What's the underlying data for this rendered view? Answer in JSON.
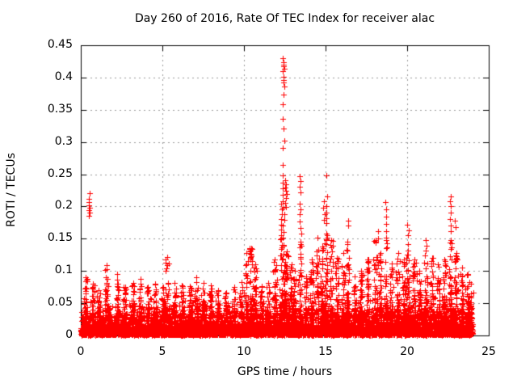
{
  "chart_data": {
    "type": "scatter",
    "title": "Day 260 of 2016, Rate Of TEC Index for receiver alac",
    "xlabel": "GPS time / hours",
    "ylabel": "ROTI / TECUs",
    "xlim": [
      0,
      25
    ],
    "ylim": [
      0,
      0.45
    ],
    "x_ticks": [
      0,
      5,
      10,
      15,
      20,
      25
    ],
    "x_tick_labels": [
      "0",
      "5",
      "10",
      "15",
      "20",
      "25"
    ],
    "y_ticks": [
      0,
      0.05,
      0.1,
      0.15,
      0.2,
      0.25,
      0.3,
      0.35,
      0.4,
      0.45
    ],
    "y_tick_labels": [
      "0",
      "0.05",
      "0.1",
      "0.15",
      "0.2",
      "0.25",
      "0.3",
      "0.35",
      "0.4",
      "0.45"
    ],
    "grid": "dashed gray lines at major ticks, both axes",
    "legend": "none",
    "marker": "plus-cross",
    "marker_color": "#ff0000",
    "grid_color": "#9a9a9a",
    "border_color": "#000000",
    "background_color": "#ffffff",
    "data_time_range": [
      0,
      24
    ],
    "baseline_band": {
      "description": "dense noise band hugging zero, most points below 0.05 TECUs across 0-24 h",
      "count": 6500,
      "exp_scale": 0.011,
      "max": 0.06
    },
    "spike_events": [
      [
        0.3,
        0.09
      ],
      [
        0.75,
        0.08
      ],
      [
        1.1,
        0.07
      ],
      [
        1.6,
        0.109
      ],
      [
        2.25,
        0.095
      ],
      [
        2.7,
        0.075
      ],
      [
        3.2,
        0.082
      ],
      [
        3.65,
        0.088
      ],
      [
        4.1,
        0.075
      ],
      [
        4.55,
        0.08
      ],
      [
        5.05,
        0.075
      ],
      [
        5.3,
        0.122
      ],
      [
        5.75,
        0.082
      ],
      [
        6.2,
        0.078
      ],
      [
        6.7,
        0.076
      ],
      [
        7.1,
        0.09
      ],
      [
        7.5,
        0.082
      ],
      [
        7.95,
        0.078
      ],
      [
        8.4,
        0.07
      ],
      [
        8.9,
        0.066
      ],
      [
        9.4,
        0.075
      ],
      [
        9.85,
        0.083
      ],
      [
        10.15,
        0.128
      ],
      [
        10.45,
        0.136
      ],
      [
        10.7,
        0.11
      ],
      [
        11.1,
        0.076
      ],
      [
        11.5,
        0.082
      ],
      [
        11.9,
        0.118
      ],
      [
        12.3,
        0.15
      ],
      [
        12.45,
        0.14
      ],
      [
        12.6,
        0.13
      ],
      [
        12.9,
        0.11
      ],
      [
        13.1,
        0.1
      ],
      [
        13.45,
        0.145
      ],
      [
        13.8,
        0.092
      ],
      [
        14.15,
        0.118
      ],
      [
        14.5,
        0.152
      ],
      [
        14.8,
        0.138
      ],
      [
        15.05,
        0.158
      ],
      [
        15.35,
        0.148
      ],
      [
        15.7,
        0.12
      ],
      [
        16.1,
        0.128
      ],
      [
        16.35,
        0.142
      ],
      [
        16.8,
        0.092
      ],
      [
        17.2,
        0.1
      ],
      [
        17.6,
        0.118
      ],
      [
        18.05,
        0.148
      ],
      [
        18.35,
        0.128
      ],
      [
        18.7,
        0.152
      ],
      [
        19.05,
        0.112
      ],
      [
        19.45,
        0.128
      ],
      [
        19.8,
        0.118
      ],
      [
        20.05,
        0.142
      ],
      [
        20.45,
        0.118
      ],
      [
        20.75,
        0.1
      ],
      [
        21.15,
        0.132
      ],
      [
        21.55,
        0.12
      ],
      [
        21.9,
        0.11
      ],
      [
        22.3,
        0.118
      ],
      [
        22.65,
        0.148
      ],
      [
        23.0,
        0.128
      ],
      [
        23.35,
        0.105
      ],
      [
        23.7,
        0.095
      ],
      [
        23.9,
        0.08
      ]
    ],
    "outlier_clusters": [
      {
        "t": 0.52,
        "values": [
          0.22,
          0.212,
          0.207,
          0.202,
          0.198,
          0.194,
          0.19,
          0.186
        ]
      },
      {
        "t": 10.4,
        "values": [
          0.136,
          0.131,
          0.127,
          0.122,
          0.118
        ]
      },
      {
        "t": 12.42,
        "values": [
          0.43,
          0.424,
          0.42,
          0.417,
          0.414,
          0.41,
          0.401,
          0.396,
          0.392,
          0.386,
          0.373,
          0.359,
          0.336,
          0.321,
          0.302,
          0.291,
          0.265,
          0.248,
          0.237,
          0.228,
          0.218,
          0.208,
          0.198,
          0.188,
          0.179,
          0.17,
          0.161,
          0.152
        ]
      },
      {
        "t": 12.58,
        "values": [
          0.241,
          0.234,
          0.229,
          0.224,
          0.219,
          0.213,
          0.206,
          0.199
        ]
      },
      {
        "t": 12.3,
        "values": [
          0.204,
          0.196,
          0.188,
          0.18,
          0.172,
          0.164,
          0.156
        ]
      },
      {
        "t": 13.45,
        "values": [
          0.247,
          0.239,
          0.231,
          0.222,
          0.204,
          0.196,
          0.188,
          0.177,
          0.167,
          0.158
        ]
      },
      {
        "t": 14.9,
        "values": [
          0.208,
          0.198,
          0.188,
          0.179
        ]
      },
      {
        "t": 15.07,
        "values": [
          0.248,
          0.215,
          0.201,
          0.191,
          0.182,
          0.174
        ]
      },
      {
        "t": 16.35,
        "values": [
          0.178,
          0.17,
          0.146
        ]
      },
      {
        "t": 18.2,
        "values": [
          0.162,
          0.151
        ]
      },
      {
        "t": 18.7,
        "values": [
          0.207,
          0.195,
          0.184,
          0.173,
          0.162
        ]
      },
      {
        "t": 20.05,
        "values": [
          0.172,
          0.163,
          0.155
        ]
      },
      {
        "t": 21.15,
        "values": [
          0.148,
          0.139
        ]
      },
      {
        "t": 22.65,
        "values": [
          0.216,
          0.208,
          0.2,
          0.191,
          0.181,
          0.171,
          0.162
        ]
      },
      {
        "t": 22.95,
        "values": [
          0.178,
          0.168
        ]
      }
    ]
  }
}
